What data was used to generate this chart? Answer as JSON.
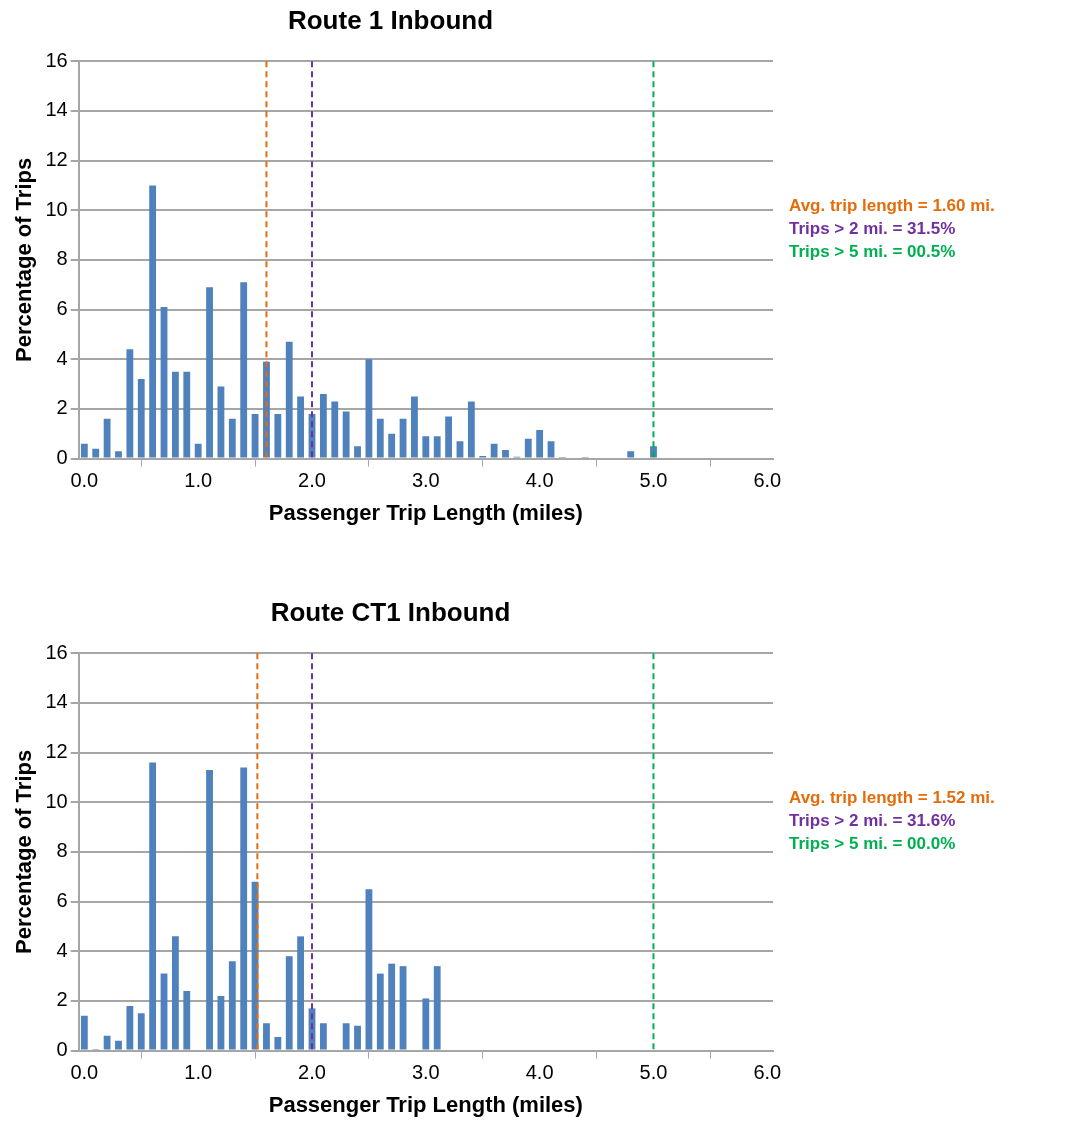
{
  "chart_data": [
    {
      "type": "bar",
      "title": "Route 1 Inbound",
      "xlabel": "Passenger Trip Length (miles)",
      "ylabel": "Percentage of Trips",
      "x": [
        0,
        0.1,
        0.2,
        0.3,
        0.4,
        0.5,
        0.6,
        0.7,
        0.8,
        0.9,
        1,
        1.1,
        1.2,
        1.3,
        1.4,
        1.5,
        1.6,
        1.7,
        1.8,
        1.9,
        2,
        2.1,
        2.2,
        2.3,
        2.4,
        2.5,
        2.6,
        2.7,
        2.8,
        2.9,
        3,
        3.1,
        3.2,
        3.3,
        3.4,
        3.5,
        3.6,
        3.7,
        3.8,
        3.9,
        4,
        4.1,
        4.2,
        4.3,
        4.4,
        4.5,
        4.6,
        4.7,
        4.8,
        4.9,
        5,
        5.1,
        5.2,
        5.3,
        5.4,
        5.5,
        5.6,
        5.7,
        5.8,
        5.9,
        6
      ],
      "values": [
        0.6,
        0.4,
        1.6,
        0.3,
        4.4,
        3.2,
        11.0,
        6.1,
        3.5,
        3.5,
        0.6,
        6.9,
        2.9,
        1.6,
        7.1,
        1.8,
        3.9,
        1.8,
        4.7,
        2.5,
        1.8,
        2.6,
        2.3,
        1.9,
        0.5,
        4.0,
        1.6,
        1.0,
        1.6,
        2.5,
        0.9,
        0.9,
        1.7,
        0.7,
        2.3,
        0.1,
        0.6,
        0.35,
        0.07,
        0.8,
        1.15,
        0.7,
        0.06,
        0.04,
        0.06,
        null,
        0,
        null,
        0.3,
        0,
        0.5,
        0,
        0,
        0,
        0,
        0,
        0,
        0,
        0,
        0,
        0
      ],
      "color": "#4f81bd",
      "xlim": [
        -0.05,
        6.05
      ],
      "ylim": [
        0,
        16
      ],
      "xticks": [
        {
          "value": 0,
          "label": "0.0"
        },
        {
          "value": 1,
          "label": "1.0"
        },
        {
          "value": 2,
          "label": "2.0"
        },
        {
          "value": 3,
          "label": "3.0"
        },
        {
          "value": 4,
          "label": "4.0"
        },
        {
          "value": 5,
          "label": "5.0"
        },
        {
          "value": 6,
          "label": "6.0"
        }
      ],
      "yticks": [
        0,
        2,
        4,
        6,
        8,
        10,
        12,
        14,
        16
      ],
      "grid": "y",
      "ref_lines": [
        {
          "axis": "x",
          "value": 1.6,
          "label": "Avg. trip length = 1.60 mi.",
          "color": "#e46c0a",
          "line_style": "dashed"
        },
        {
          "axis": "x",
          "value": 2.0,
          "label": "Trips > 2 mi. = 31.5%",
          "color": "#7030a0",
          "line_style": "dashed"
        },
        {
          "axis": "x",
          "value": 5.0,
          "label": "Trips > 5 mi. = 00.5%",
          "color": "#00b050",
          "line_style": "dashed"
        }
      ]
    },
    {
      "type": "bar",
      "title": "Route CT1 Inbound",
      "xlabel": "Passenger Trip Length (miles)",
      "ylabel": "Percentage of Trips",
      "x": [
        0,
        0.1,
        0.2,
        0.3,
        0.4,
        0.5,
        0.6,
        0.7,
        0.8,
        0.9,
        1,
        1.1,
        1.2,
        1.3,
        1.4,
        1.5,
        1.6,
        1.7,
        1.8,
        1.9,
        2,
        2.1,
        2.2,
        2.3,
        2.4,
        2.5,
        2.6,
        2.7,
        2.8,
        2.9,
        3,
        3.1,
        3.2,
        3.3,
        3.4,
        3.5,
        3.6,
        3.7,
        3.8,
        3.9,
        4,
        4.1,
        4.2,
        4.3,
        4.4,
        4.5,
        4.6,
        4.7,
        4.8,
        4.9,
        5,
        5.1,
        5.2,
        5.3,
        5.4,
        5.5,
        5.6,
        5.7,
        5.8,
        5.9,
        6
      ],
      "values": [
        1.4,
        0.06,
        0.6,
        0.4,
        1.8,
        1.5,
        11.6,
        3.1,
        4.6,
        2.4,
        0,
        11.3,
        2.2,
        3.6,
        11.4,
        6.8,
        1.1,
        0.55,
        3.8,
        4.6,
        1.7,
        1.1,
        0,
        1.1,
        1.0,
        6.5,
        3.1,
        3.5,
        3.4,
        0,
        2.1,
        3.4,
        0,
        0,
        0,
        0,
        0,
        0,
        0,
        0,
        0,
        0,
        0,
        0,
        0,
        0,
        0,
        0,
        0,
        0,
        0,
        0,
        0,
        0,
        0,
        0,
        0,
        0,
        0,
        0,
        0
      ],
      "color": "#4f81bd",
      "xlim": [
        -0.05,
        6.05
      ],
      "ylim": [
        0,
        16
      ],
      "xticks": [
        {
          "value": 0,
          "label": "0.0"
        },
        {
          "value": 1,
          "label": "1.0"
        },
        {
          "value": 2,
          "label": "2.0"
        },
        {
          "value": 3,
          "label": "3.0"
        },
        {
          "value": 4,
          "label": "4.0"
        },
        {
          "value": 5,
          "label": "5.0"
        },
        {
          "value": 6,
          "label": "6.0"
        }
      ],
      "yticks": [
        0,
        2,
        4,
        6,
        8,
        10,
        12,
        14,
        16
      ],
      "grid": "y",
      "ref_lines": [
        {
          "axis": "x",
          "value": 1.52,
          "label": "Avg. trip length = 1.52 mi.",
          "color": "#e46c0a",
          "line_style": "dashed"
        },
        {
          "axis": "x",
          "value": 2.0,
          "label": "Trips > 2 mi. = 31.6%",
          "color": "#7030a0",
          "line_style": "dashed"
        },
        {
          "axis": "x",
          "value": 5.0,
          "label": "Trips > 5 mi. = 00.0%",
          "color": "#00b050",
          "line_style": "dashed"
        }
      ]
    }
  ]
}
